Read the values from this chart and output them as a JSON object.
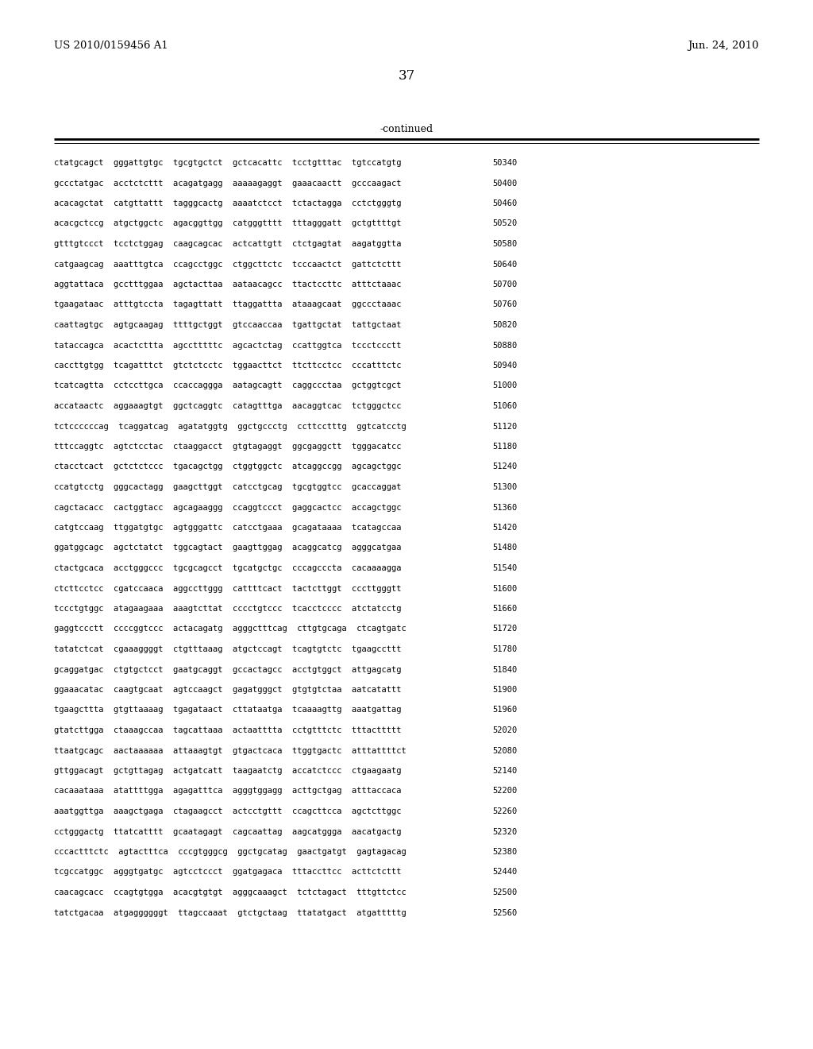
{
  "patent_number": "US 2010/0159456 A1",
  "date": "Jun. 24, 2010",
  "page_number": "37",
  "continued_label": "-continued",
  "background_color": "#ffffff",
  "text_color": "#000000",
  "sequence_lines": [
    {
      "seq": "ctatgcagct  gggattgtgc  tgcgtgctct  gctcacattc  tcctgtttac  tgtccatgtg",
      "num": "50340"
    },
    {
      "seq": "gccctatgac  acctctcttt  acagatgagg  aaaaagaggt  gaaacaactt  gcccaagact",
      "num": "50400"
    },
    {
      "seq": "acacagctat  catgttattt  tagggcactg  aaaatctcct  tctactagga  cctctgggtg",
      "num": "50460"
    },
    {
      "seq": "acacgctccg  atgctggctc  agacggttgg  catgggtttt  tttagggatt  gctgttttgt",
      "num": "50520"
    },
    {
      "seq": "gtttgtccct  tcctctggag  caagcagcac  actcattgtt  ctctgagtat  aagatggtta",
      "num": "50580"
    },
    {
      "seq": "catgaagcag  aaatttgtca  ccagcctggc  ctggcttctc  tcccaactct  gattctcttt",
      "num": "50640"
    },
    {
      "seq": "aggtattaca  gcctttggaa  agctacttaa  aataacagcc  ttactccttc  atttctaaac",
      "num": "50700"
    },
    {
      "seq": "tgaagataac  atttgtccta  tagagttatt  ttaggattta  ataaagcaat  ggccctaaac",
      "num": "50760"
    },
    {
      "seq": "caattagtgc  agtgcaagag  ttttgctggt  gtccaaccaa  tgattgctat  tattgctaat",
      "num": "50820"
    },
    {
      "seq": "tataccagca  acactcttta  agcctttttc  agcactctag  ccattggtca  tccctccctt",
      "num": "50880"
    },
    {
      "seq": "caccttgtgg  tcagatttct  gtctctcctc  tggaacttct  ttcttcctcc  cccatttctc",
      "num": "50940"
    },
    {
      "seq": "tcatcagtta  cctccttgca  ccaccaggga  aatagcagtt  caggccctaa  gctggtcgct",
      "num": "51000"
    },
    {
      "seq": "accataactc  aggaaagtgt  ggctcaggtc  catagtttga  aacaggtcac  tctgggctcc",
      "num": "51060"
    },
    {
      "seq": "tctccccccag  tcaggatcag  agatatggtg  ggctgccctg  ccttcctttg  ggtcatcctg",
      "num": "51120"
    },
    {
      "seq": "tttccaggtc  agtctcctac  ctaaggacct  gtgtagaggt  ggcgaggctt  tgggacatcc",
      "num": "51180"
    },
    {
      "seq": "ctacctcact  gctctctccc  tgacagctgg  ctggtggctc  atcaggccgg  agcagctggc",
      "num": "51240"
    },
    {
      "seq": "ccatgtcctg  gggcactagg  gaagcttggt  catcctgcag  tgcgtggtcc  gcaccaggat",
      "num": "51300"
    },
    {
      "seq": "cagctacacc  cactggtacc  agcagaaggg  ccaggtccct  gaggcactcc  accagctggc",
      "num": "51360"
    },
    {
      "seq": "catgtccaag  ttggatgtgc  agtgggattc  catcctgaaa  gcagataaaa  tcatagccaa",
      "num": "51420"
    },
    {
      "seq": "ggatggcagc  agctctatct  tggcagtact  gaagttggag  acaggcatcg  agggcatgaa",
      "num": "51480"
    },
    {
      "seq": "ctactgcaca  acctgggccc  tgcgcagcct  tgcatgctgc  cccagcccta  cacaaaagga",
      "num": "51540"
    },
    {
      "seq": "ctcttcctcc  cgatccaaca  aggccttggg  cattttcact  tactcttggt  cccttgggtt",
      "num": "51600"
    },
    {
      "seq": "tccctgtggc  atagaagaaa  aaagtcttat  cccctgtccc  tcacctcccc  atctatcctg",
      "num": "51660"
    },
    {
      "seq": "gaggtccctt  ccccggtccc  actacagatg  agggctttcag  cttgtgcaga  ctcagtgatc",
      "num": "51720"
    },
    {
      "seq": "tatatctcat  cgaaaggggt  ctgtttaaag  atgctccagt  tcagtgtctc  tgaagccttt",
      "num": "51780"
    },
    {
      "seq": "gcaggatgac  ctgtgctcct  gaatgcaggt  gccactagcc  acctgtggct  attgagcatg",
      "num": "51840"
    },
    {
      "seq": "ggaaacatac  caagtgcaat  agtccaagct  gagatgggct  gtgtgtctaa  aatcatattt",
      "num": "51900"
    },
    {
      "seq": "tgaagcttta  gtgttaaaag  tgagataact  cttataatga  tcaaaagttg  aaatgattag",
      "num": "51960"
    },
    {
      "seq": "gtatcttgga  ctaaagccaa  tagcattaaa  actaatttta  cctgtttctc  tttacttttt",
      "num": "52020"
    },
    {
      "seq": "ttaatgcagc  aactaaaaaa  attaaagtgt  gtgactcaca  ttggtgactc  atttattttct",
      "num": "52080"
    },
    {
      "seq": "gttggacagt  gctgttagag  actgatcatt  taagaatctg  accatctccc  ctgaagaatg",
      "num": "52140"
    },
    {
      "seq": "cacaaataaa  atattttgga  agagatttca  agggtggagg  acttgctgag  atttaccaca",
      "num": "52200"
    },
    {
      "seq": "aaatggttga  aaagctgaga  ctagaagcct  actcctgttt  ccagcttcca  agctcttggc",
      "num": "52260"
    },
    {
      "seq": "cctgggactg  ttatcatttt  gcaatagagt  cagcaattag  aagcatggga  aacatgactg",
      "num": "52320"
    },
    {
      "seq": "cccactttctc  agtactttca  cccgtgggcg  ggctgcatag  gaactgatgt  gagtagacag",
      "num": "52380"
    },
    {
      "seq": "tcgccatggc  agggtgatgc  agtcctccct  ggatgagaca  tttaccttcc  acttctcttt",
      "num": "52440"
    },
    {
      "seq": "caacagcacc  ccagtgtgga  acacgtgtgt  agggcaaagct  tctctagact  tttgttctcc",
      "num": "52500"
    },
    {
      "seq": "tatctgacaa  atgaggggggt  ttagccaaat  gtctgctaag  ttatatgact  atgatttttg",
      "num": "52560"
    }
  ]
}
